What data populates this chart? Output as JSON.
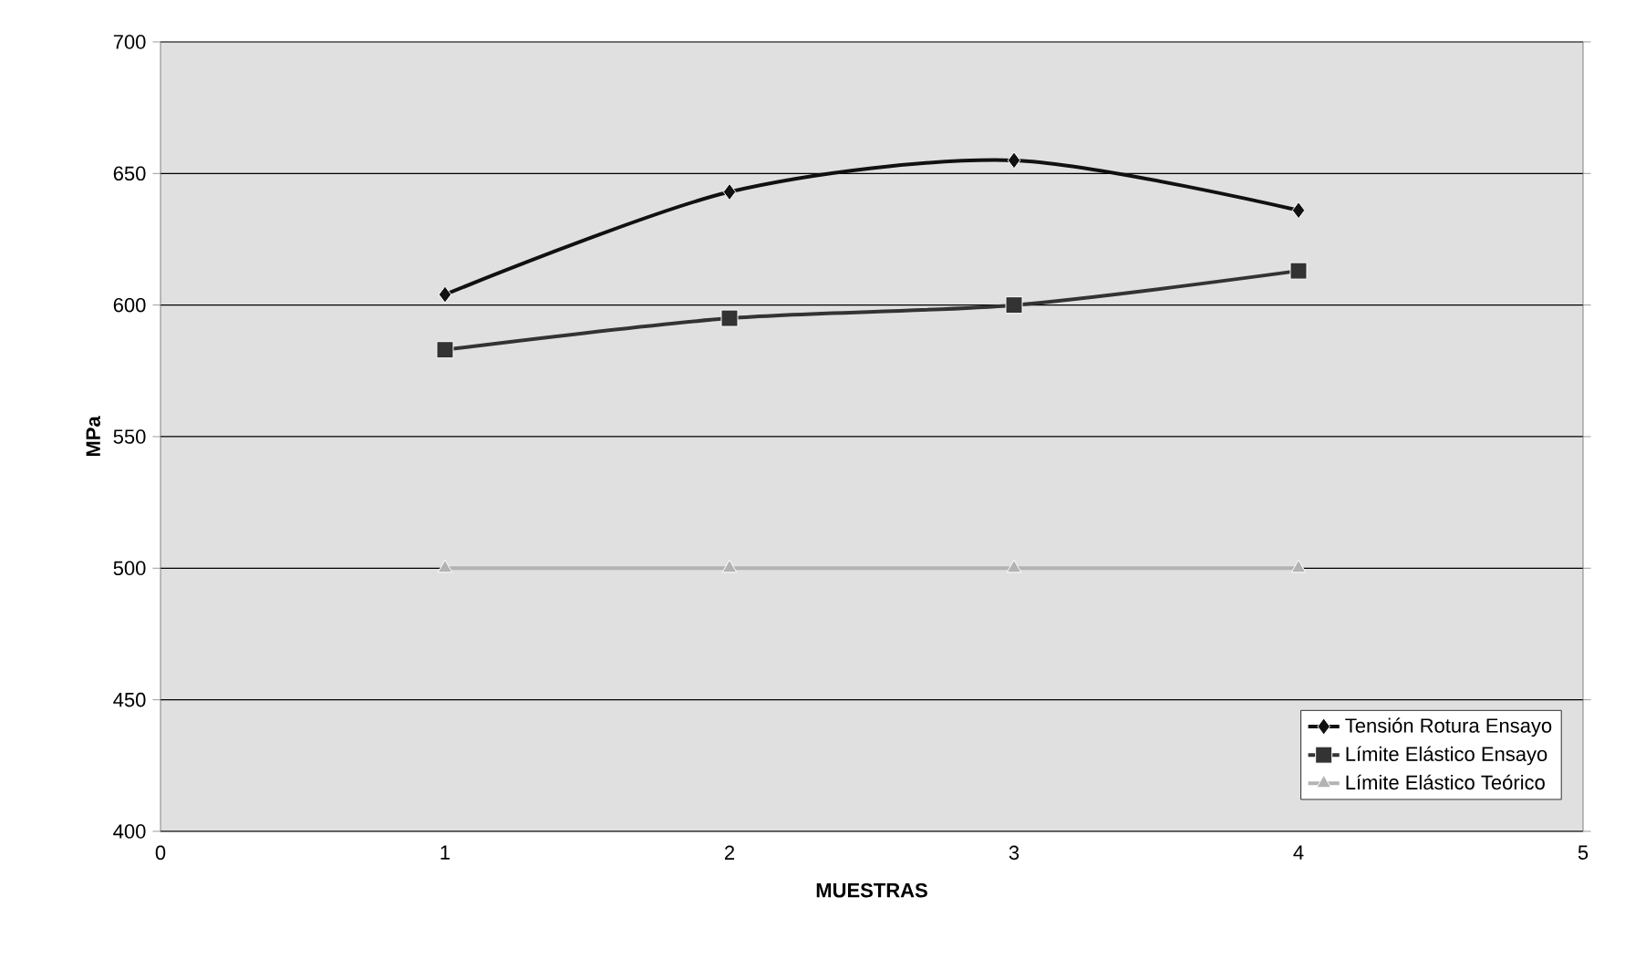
{
  "chart_data": {
    "type": "line",
    "xlabel": "MUESTRAS",
    "ylabel": "MPa",
    "x": [
      1,
      2,
      3,
      4
    ],
    "series": [
      {
        "name": "Tensión Rotura Ensayo",
        "color": "#111111",
        "marker": "diamond",
        "values": [
          604,
          643,
          655,
          636
        ]
      },
      {
        "name": "Límite Elástico Ensayo",
        "color": "#333333",
        "marker": "square",
        "values": [
          583,
          595,
          600,
          613
        ]
      },
      {
        "name": "Límite Elástico Teórico",
        "color": "#b3b3b3",
        "marker": "triangle",
        "values": [
          500,
          500,
          500,
          500
        ]
      }
    ],
    "xlim": [
      0,
      5
    ],
    "xticks": [
      0,
      1,
      2,
      3,
      4,
      5
    ],
    "ylim": [
      400,
      700
    ],
    "yticks": [
      400,
      450,
      500,
      550,
      600,
      650,
      700
    ],
    "grid": "y",
    "legend": "bottom right",
    "line_style": "solid"
  }
}
